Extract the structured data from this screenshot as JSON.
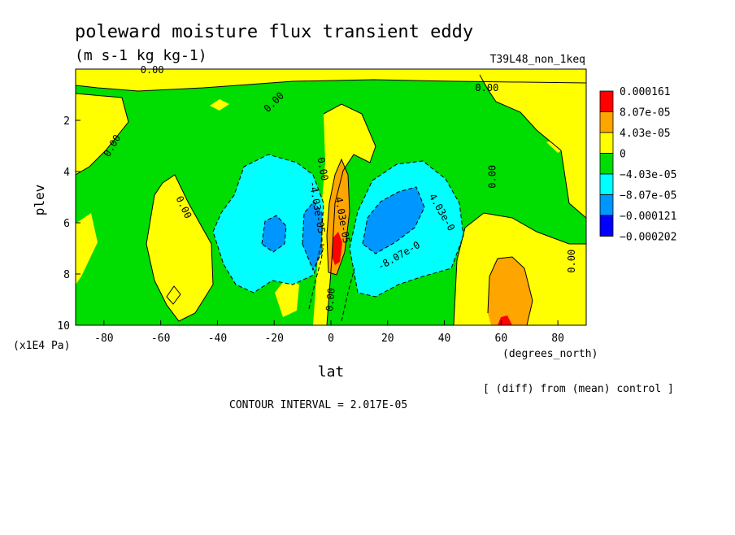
{
  "chart_data": {
    "type": "heatmap",
    "title": "poleward moisture flux transient eddy",
    "units": "(m s-1 kg kg-1)",
    "experiment": "T39L48_non_1keq",
    "xlabel": "lat",
    "x_units": "(degrees_north)",
    "ylabel": "plev",
    "y_units": "(x1E4 Pa)",
    "xlim": [
      -90,
      90
    ],
    "ylim": [
      10,
      0
    ],
    "x_ticks": [
      -80,
      -60,
      -40,
      -20,
      0,
      20,
      40,
      60,
      80
    ],
    "x_tick_labels": [
      "-80",
      "-60",
      "-40",
      "-20",
      "0",
      "20",
      "40",
      "60",
      "80"
    ],
    "y_ticks": [
      2,
      4,
      6,
      8,
      10
    ],
    "y_tick_labels": [
      "2",
      "4",
      "6",
      "8",
      "10"
    ],
    "note": "[ (diff) from (mean) control ]",
    "contour_interval": "CONTOUR INTERVAL = 2.017E-05",
    "colorbar": {
      "colors": [
        "#ff0000",
        "#ffa500",
        "#ffff00",
        "#00dd00",
        "#00ffff",
        "#0096ff",
        "#0000ff"
      ],
      "labels": [
        "0.000161",
        "8.07e-05",
        "4.03e-05",
        "0",
        "−4.03e-05",
        "−8.07e-05",
        "−0.000121",
        "−0.000202"
      ]
    },
    "contour_labels": [
      {
        "text": "0.00",
        "lat": -63,
        "p": 0.05,
        "rot": 0
      },
      {
        "text": "0.00",
        "lat": 55,
        "p": 0.75,
        "rot": 0
      },
      {
        "text": "0.00",
        "lat": -20,
        "p": 1.3,
        "rot": -45
      },
      {
        "text": "0.00",
        "lat": -77,
        "p": 3.0,
        "rot": -60
      },
      {
        "text": "0.00",
        "lat": 57,
        "p": 4.2,
        "rot": -90
      },
      {
        "text": "0.00",
        "lat": -52,
        "p": 5.4,
        "rot": 65
      },
      {
        "text": "0.00",
        "lat": 85,
        "p": 7.5,
        "rot": -90
      },
      {
        "text": "0.00",
        "lat": -3,
        "p": 3.9,
        "rot": 80
      },
      {
        "text": "0.00",
        "lat": 0,
        "p": 9.0,
        "rot": -85
      },
      {
        "text": "-4.03e-05",
        "lat": -5,
        "p": 5.4,
        "rot": 80
      },
      {
        "text": "4.03e-05",
        "lat": 4,
        "p": 5.9,
        "rot": 80
      },
      {
        "text": "4.03e-0",
        "lat": 39,
        "p": 5.6,
        "rot": 60
      },
      {
        "text": "-8.07e-0",
        "lat": 24,
        "p": 7.3,
        "rot": -30
      }
    ]
  }
}
